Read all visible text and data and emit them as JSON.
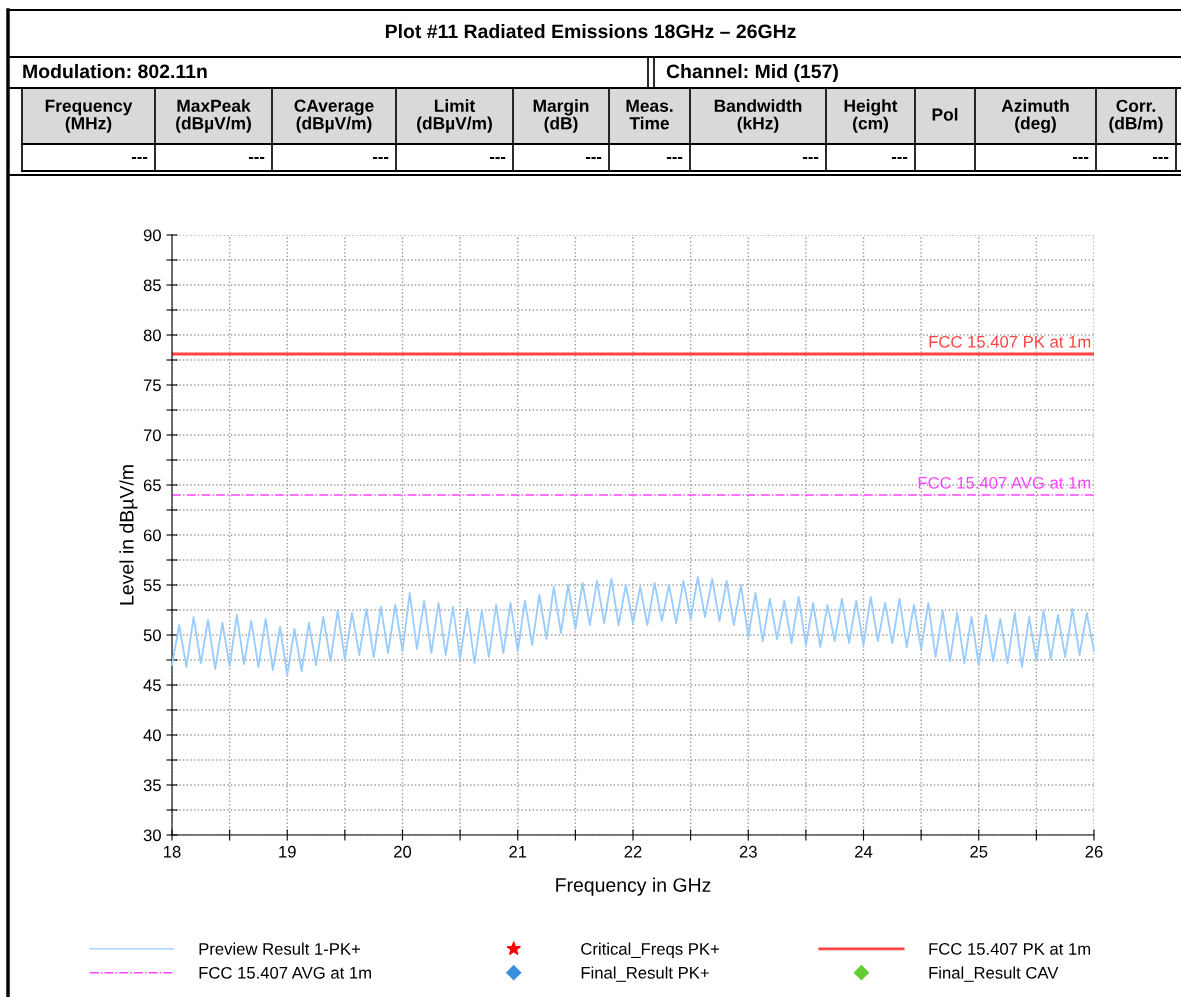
{
  "chart_data": {
    "type": "line",
    "title": "Plot #11 Radiated Emissions 18GHz – 26GHz",
    "xlabel": "Frequency in GHz",
    "ylabel": "Level in dBµV/m",
    "annotations": [
      "Modulation: 802.11n",
      "Channel: Mid (157)",
      "Frequency\n(MHz)",
      "MaxPeak\n(dBµV/m)",
      "CAverage\n(dBµV/m)",
      "Limit\n(dBµV/m)",
      "Margin\n(dB)",
      "Meas.\nTime",
      "Bandwidth\n(kHz)",
      "Height\n(cm)",
      "Pol",
      "Azimuth\n(deg)",
      "Corr.\n(dB/m)",
      "---",
      "---",
      "---",
      "---",
      "---",
      "---",
      "---",
      "---",
      "---",
      "---",
      "Critical_Freqs PK+",
      "Final_Result PK+",
      "Final_Result CAV"
    ],
    "xlim": [
      18,
      26
    ],
    "xticks": [
      18,
      {
        "value": 18.5,
        "label": null
      },
      19,
      {
        "value": 19.5,
        "label": null
      },
      20,
      {
        "value": 20.5,
        "label": null
      },
      21,
      {
        "value": 21.5,
        "label": null
      },
      22,
      {
        "value": 22.5,
        "label": null
      },
      23,
      {
        "value": 23.5,
        "label": null
      },
      24,
      {
        "value": 24.5,
        "label": null
      },
      25,
      {
        "value": 25.5,
        "label": null
      },
      26
    ],
    "ylim": [
      30,
      90
    ],
    "yticks": [
      30,
      {
        "value": 32.5,
        "label": null
      },
      35,
      {
        "value": 37.5,
        "label": null
      },
      40,
      {
        "value": 42.5,
        "label": null
      },
      45,
      {
        "value": 47.5,
        "label": null
      },
      50,
      {
        "value": 52.5,
        "label": null
      },
      55,
      {
        "value": 57.5,
        "label": null
      },
      60,
      {
        "value": 62.5,
        "label": null
      },
      65,
      {
        "value": 67.5,
        "label": null
      },
      70,
      {
        "value": 72.5,
        "label": null
      },
      75,
      {
        "value": 77.5,
        "label": null
      },
      80,
      {
        "value": 82.5,
        "label": null
      },
      85,
      {
        "value": 87.5,
        "label": null
      },
      90
    ],
    "grid": true,
    "legend": "bottom",
    "series": [
      {
        "name": "Preview Result 1-PK+",
        "color": "#99ccff",
        "x": [
          18.0,
          18.0625,
          18.125,
          18.1875,
          18.25,
          18.3125,
          18.375,
          18.4375,
          18.5,
          18.5625,
          18.625,
          18.6875,
          18.75,
          18.8125,
          18.875,
          18.9375,
          19.0,
          19.0625,
          19.125,
          19.1875,
          19.25,
          19.3125,
          19.375,
          19.4375,
          19.5,
          19.5625,
          19.625,
          19.6875,
          19.75,
          19.8125,
          19.875,
          19.9375,
          20.0,
          20.0625,
          20.125,
          20.1875,
          20.25,
          20.3125,
          20.375,
          20.4375,
          20.5,
          20.5625,
          20.625,
          20.6875,
          20.75,
          20.8125,
          20.875,
          20.9375,
          21.0,
          21.0625,
          21.125,
          21.1875,
          21.25,
          21.3125,
          21.375,
          21.4375,
          21.5,
          21.5625,
          21.625,
          21.6875,
          21.75,
          21.8125,
          21.875,
          21.9375,
          22.0,
          22.0625,
          22.125,
          22.1875,
          22.25,
          22.3125,
          22.375,
          22.4375,
          22.5,
          22.5625,
          22.625,
          22.6875,
          22.75,
          22.8125,
          22.875,
          22.9375,
          23.0,
          23.0625,
          23.125,
          23.1875,
          23.25,
          23.3125,
          23.375,
          23.4375,
          23.5,
          23.5625,
          23.625,
          23.6875,
          23.75,
          23.8125,
          23.875,
          23.9375,
          24.0,
          24.0625,
          24.125,
          24.1875,
          24.25,
          24.3125,
          24.375,
          24.4375,
          24.5,
          24.5625,
          24.625,
          24.6875,
          24.75,
          24.8125,
          24.875,
          24.9375,
          25.0,
          25.0625,
          25.125,
          25.1875,
          25.25,
          25.3125,
          25.375,
          25.4375,
          25.5,
          25.5625,
          25.625,
          25.6875,
          25.75,
          25.8125,
          25.875,
          25.9375,
          26.0
        ],
        "values": [
          47.0,
          51.0,
          46.8,
          51.8,
          47.2,
          51.5,
          46.6,
          51.2,
          46.9,
          52.0,
          47.1,
          51.4,
          46.8,
          51.6,
          46.5,
          50.8,
          46.0,
          50.6,
          46.4,
          51.2,
          47.0,
          51.8,
          47.4,
          52.4,
          47.6,
          52.2,
          48.0,
          52.6,
          47.8,
          52.8,
          48.2,
          53.0,
          48.4,
          54.2,
          48.6,
          53.4,
          48.2,
          53.2,
          48.0,
          52.8,
          47.6,
          52.6,
          47.2,
          52.4,
          47.8,
          53.0,
          48.2,
          53.2,
          48.4,
          53.4,
          49.0,
          54.0,
          49.6,
          54.8,
          50.2,
          55.0,
          50.6,
          55.2,
          51.0,
          55.4,
          51.2,
          55.6,
          51.0,
          55.0,
          51.2,
          54.8,
          51.0,
          55.2,
          51.4,
          55.0,
          51.2,
          55.4,
          51.6,
          55.8,
          51.8,
          55.6,
          51.4,
          55.4,
          51.0,
          55.0,
          49.8,
          54.2,
          49.4,
          53.6,
          49.6,
          53.4,
          49.2,
          53.8,
          49.0,
          53.2,
          48.8,
          53.0,
          49.4,
          53.6,
          49.2,
          53.4,
          49.0,
          53.8,
          49.4,
          53.2,
          49.2,
          53.6,
          48.8,
          53.0,
          48.6,
          53.2,
          47.8,
          52.4,
          47.4,
          52.2,
          47.2,
          51.8,
          47.0,
          52.0,
          47.4,
          51.6,
          47.2,
          52.2,
          46.8,
          51.8,
          47.4,
          52.4,
          47.6,
          52.0,
          47.8,
          52.6,
          48.0,
          52.2,
          48.4
        ]
      }
    ],
    "ref_lines": [
      {
        "axis": "y",
        "value": 78.1,
        "label": "FCC 15.407 PK at 1m",
        "color": "#ff4444",
        "line_style": "solid"
      },
      {
        "axis": "y",
        "value": 64,
        "label": "FCC 15.407 AVG at 1m",
        "color": "#ff44ff",
        "line_style": "dashdot"
      }
    ]
  }
}
